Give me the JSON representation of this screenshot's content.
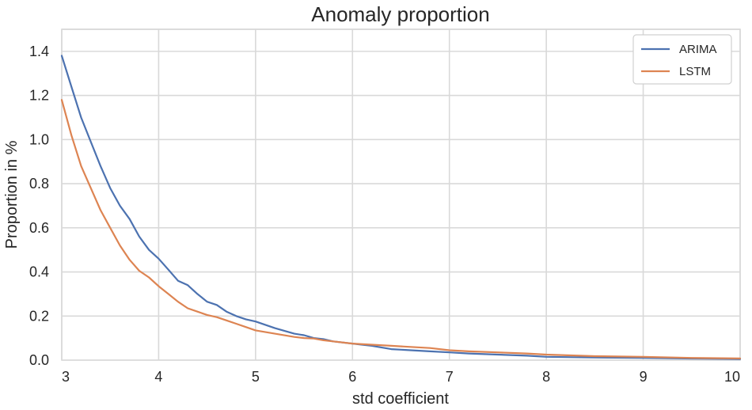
{
  "chart_data": {
    "type": "line",
    "title": "Anomaly proportion",
    "xlabel": "std coefficient",
    "ylabel": "Proportion in %",
    "xlim": [
      3,
      10
    ],
    "ylim": [
      0,
      1.5
    ],
    "grid": true,
    "legend_position": "top-right",
    "xticks": [
      3,
      4,
      5,
      6,
      7,
      8,
      9,
      10
    ],
    "xtick_labels": [
      "3",
      "4",
      "5",
      "6",
      "7",
      "8",
      "9",
      "10"
    ],
    "yticks": [
      0,
      0.2,
      0.4,
      0.6,
      0.8,
      1.0,
      1.2,
      1.4
    ],
    "ytick_labels": [
      "0.0",
      "0.2",
      "0.4",
      "0.6",
      "0.8",
      "1.0",
      "1.2",
      "1.4"
    ],
    "series": [
      {
        "name": "ARIMA",
        "color": "#4c72b0",
        "x": [
          3,
          3.1,
          3.2,
          3.3,
          3.4,
          3.5,
          3.6,
          3.7,
          3.8,
          3.9,
          4.0,
          4.1,
          4.2,
          4.3,
          4.4,
          4.5,
          4.6,
          4.7,
          4.8,
          4.9,
          5.0,
          5.2,
          5.4,
          5.5,
          5.6,
          5.7,
          5.8,
          6.0,
          6.2,
          6.4,
          6.6,
          6.8,
          7.0,
          7.2,
          7.5,
          7.8,
          8.0,
          8.5,
          9.0,
          9.5,
          10.0
        ],
        "y": [
          1.38,
          1.24,
          1.1,
          0.99,
          0.88,
          0.78,
          0.7,
          0.64,
          0.56,
          0.5,
          0.46,
          0.41,
          0.36,
          0.34,
          0.3,
          0.265,
          0.25,
          0.22,
          0.2,
          0.185,
          0.175,
          0.145,
          0.12,
          0.113,
          0.1,
          0.095,
          0.085,
          0.075,
          0.065,
          0.05,
          0.045,
          0.04,
          0.035,
          0.03,
          0.025,
          0.02,
          0.015,
          0.012,
          0.01,
          0.007,
          0.005
        ]
      },
      {
        "name": "LSTM",
        "color": "#dd8452",
        "x": [
          3,
          3.1,
          3.2,
          3.3,
          3.4,
          3.5,
          3.6,
          3.7,
          3.8,
          3.9,
          4.0,
          4.1,
          4.2,
          4.3,
          4.4,
          4.5,
          4.6,
          4.7,
          4.8,
          4.9,
          5.0,
          5.2,
          5.4,
          5.5,
          5.6,
          5.7,
          5.8,
          6.0,
          6.2,
          6.4,
          6.6,
          6.8,
          7.0,
          7.2,
          7.5,
          7.8,
          8.0,
          8.5,
          9.0,
          9.5,
          10.0
        ],
        "y": [
          1.18,
          1.02,
          0.88,
          0.78,
          0.68,
          0.6,
          0.52,
          0.455,
          0.405,
          0.375,
          0.335,
          0.3,
          0.265,
          0.235,
          0.22,
          0.205,
          0.195,
          0.18,
          0.165,
          0.15,
          0.135,
          0.12,
          0.105,
          0.1,
          0.098,
          0.09,
          0.085,
          0.075,
          0.07,
          0.065,
          0.06,
          0.055,
          0.045,
          0.04,
          0.035,
          0.03,
          0.025,
          0.018,
          0.015,
          0.01,
          0.008
        ]
      }
    ]
  }
}
